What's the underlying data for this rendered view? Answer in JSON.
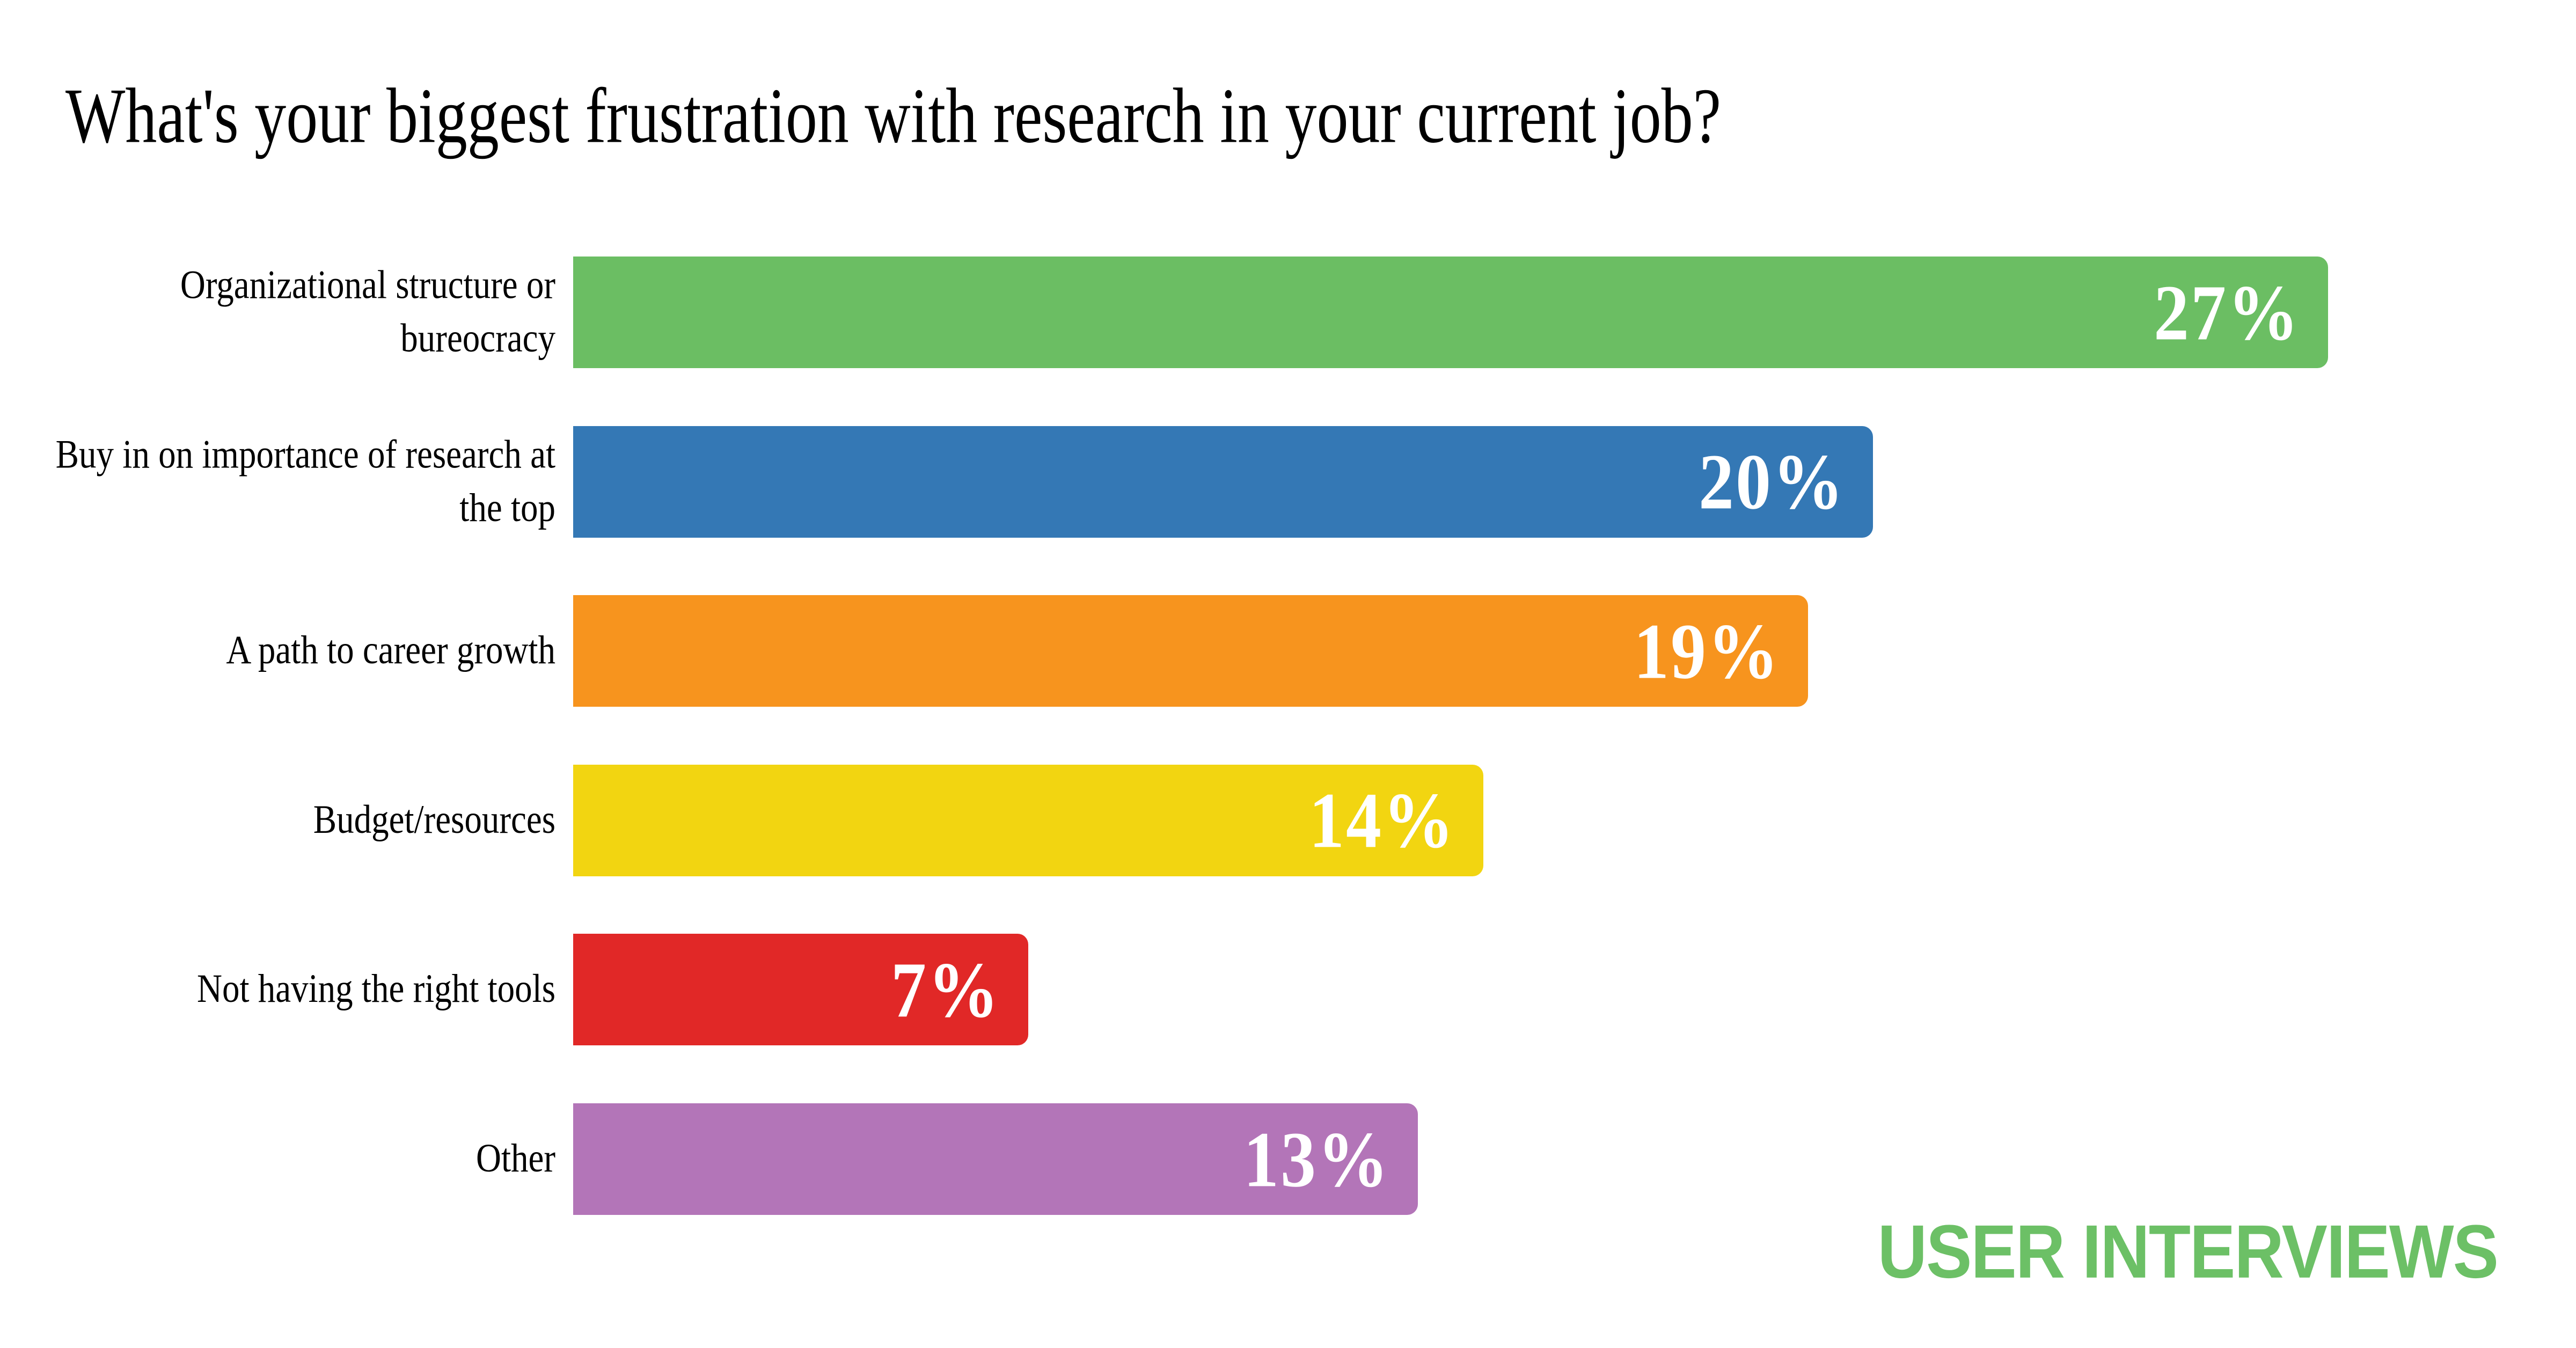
{
  "page": {
    "background": "#ffffff"
  },
  "chart_data": {
    "type": "bar",
    "orientation": "horizontal",
    "title": "What's your biggest frustration with research in your current job?",
    "categories": [
      "Organizational structure or bureocracy",
      "Buy in on importance of research at the top",
      "A path to career growth",
      "Budget/resources",
      "Not having the right tools",
      "Other"
    ],
    "values": [
      27,
      20,
      19,
      14,
      7,
      13
    ],
    "value_labels": [
      "27%",
      "20%",
      "19%",
      "14%",
      "7%",
      "13%"
    ],
    "bar_colors": [
      "#6bbe63",
      "#3478b5",
      "#f7941e",
      "#f2d511",
      "#e12827",
      "#b375b8"
    ],
    "value_label_color": "#ffffff",
    "category_label_color": "#000000",
    "title_color": "#000000",
    "xlim": [
      0,
      27
    ],
    "grid": false,
    "legend": false,
    "axes_visible": false
  },
  "brand": {
    "logo_text": "USER INTERVIEWS",
    "color": "#6cc066"
  }
}
